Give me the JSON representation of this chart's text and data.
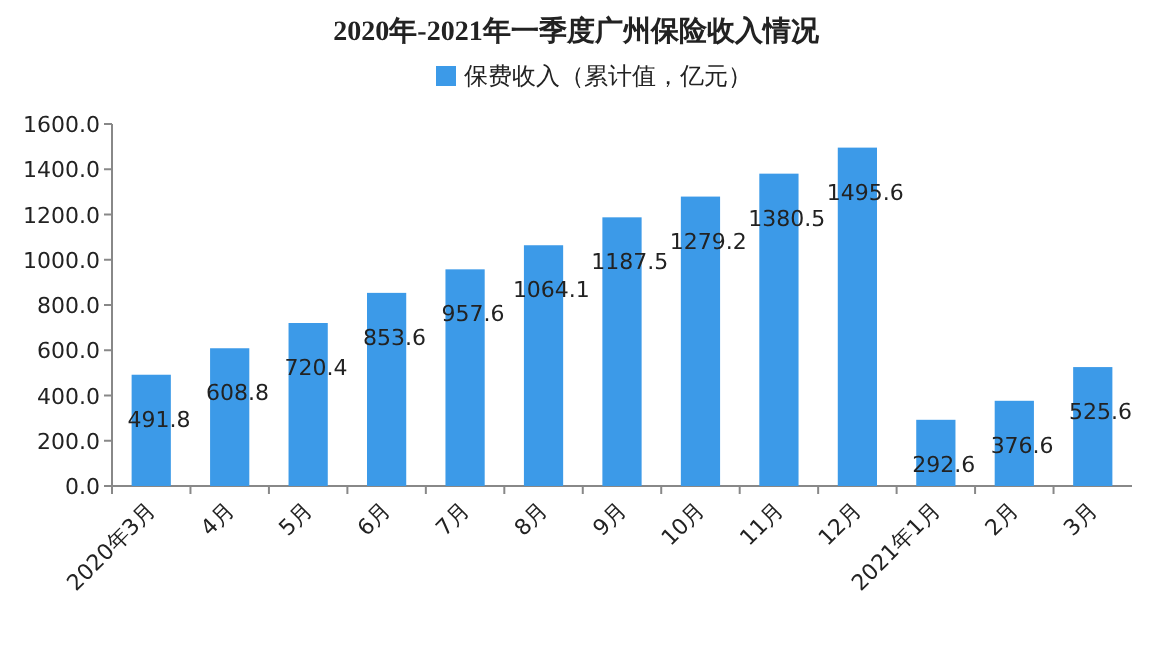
{
  "chart_data": {
    "type": "bar",
    "title": "2020年-2021年一季度广州保险收入情况",
    "legend": "top",
    "categories": [
      "2020年3月",
      "4月",
      "5月",
      "6月",
      "7月",
      "8月",
      "9月",
      "10月",
      "11月",
      "12月",
      "2021年1月",
      "2月",
      "3月"
    ],
    "series": [
      {
        "name": "保费收入（累计值，亿元）",
        "color": "#3c9ae8",
        "values": [
          491.8,
          608.8,
          720.4,
          853.6,
          957.6,
          1064.1,
          1187.5,
          1279.2,
          1380.5,
          1495.6,
          292.6,
          376.6,
          525.6
        ]
      }
    ],
    "ylim": [
      0,
      1600
    ],
    "yticks": [
      {
        "value": 0,
        "label": "0.0"
      },
      {
        "value": 200,
        "label": "200.0"
      },
      {
        "value": 400,
        "label": "400.0"
      },
      {
        "value": 600,
        "label": "600.0"
      },
      {
        "value": 800,
        "label": "800.0"
      },
      {
        "value": 1000,
        "label": "1000.0"
      },
      {
        "value": 1200,
        "label": "1200.0"
      },
      {
        "value": 1400,
        "label": "1400.0"
      },
      {
        "value": 1600,
        "label": "1600.0"
      }
    ],
    "data_labels": true
  }
}
